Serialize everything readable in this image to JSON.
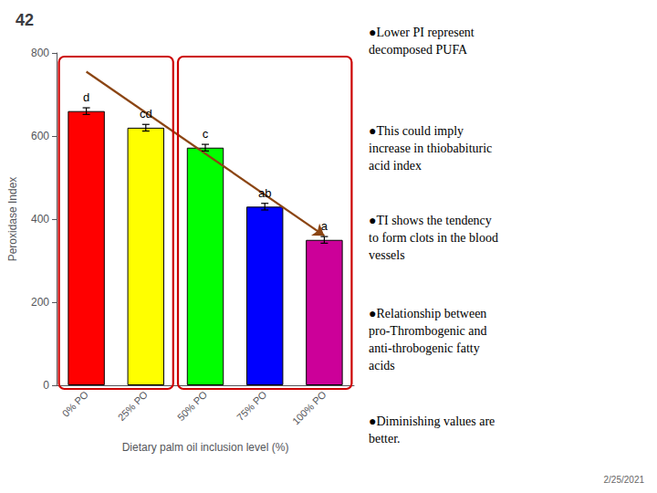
{
  "chart_data": {
    "type": "bar",
    "title": "42",
    "categories": [
      "0% PO",
      "25% PO",
      "50% PO",
      "75% PO",
      "100% PO"
    ],
    "values": [
      660,
      620,
      572,
      430,
      350
    ],
    "errors": [
      8,
      8,
      8,
      8,
      8
    ],
    "colors": [
      "#ff0000",
      "#ffff00",
      "#00ff00",
      "#0000ff",
      "#cc0099"
    ],
    "letters": [
      "d",
      "cd",
      "c",
      "ab",
      "a"
    ],
    "xlabel": "Dietary palm oil inclusion level (%)",
    "ylabel": "Peroxidase Index",
    "ylim": [
      0,
      800
    ],
    "yticks": [
      0,
      200,
      400,
      600,
      800
    ],
    "grid": false,
    "groups": [
      {
        "categories": [
          "0% PO",
          "25% PO"
        ],
        "color": "#cc0000"
      },
      {
        "categories": [
          "50% PO",
          "75% PO",
          "100% PO"
        ],
        "color": "#cc0000"
      }
    ],
    "arrow": {
      "from": [
        "0% PO",
        755
      ],
      "to": [
        "100% PO",
        360
      ],
      "color": "#8b4513"
    },
    "notes": [
      "●Lower PI represent\ndecomposed PUFA",
      "●This could imply\nincrease in thiobabituric\nacid index",
      "●TI shows the tendency\nto form clots in the blood\nvessels",
      "●Relationship between\npro-Thrombogenic and\nanti-throbogenic fatty\nacids",
      "●Diminishing values are\nbetter."
    ],
    "date": "2/25/2021"
  }
}
